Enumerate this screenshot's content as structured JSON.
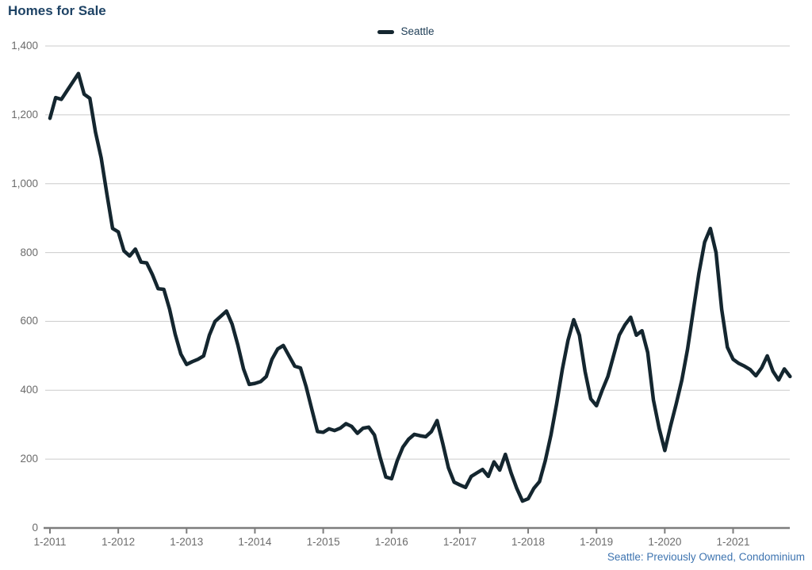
{
  "title": "Homes for Sale",
  "legend": {
    "label": "Seattle"
  },
  "footer": {
    "source_label": "Seattle: Previously Owned, Condominium"
  },
  "colors": {
    "title": "#1e4365",
    "legend_text": "#1d3c55",
    "series_line": "#14262f",
    "gridline": "#cbcbcb",
    "axis": "#7d7d7d",
    "tick_label": "#6b6b6b",
    "source_link": "#3e74b0",
    "background": "#ffffff"
  },
  "chart_data": {
    "type": "line",
    "title": "Homes for Sale",
    "xlabel": "",
    "ylabel": "",
    "grid": "horizontal",
    "legend_position": "top-center",
    "ylim": [
      0,
      1400
    ],
    "y_ticks": [
      {
        "value": 0,
        "label": "0"
      },
      {
        "value": 200,
        "label": "200"
      },
      {
        "value": 400,
        "label": "400"
      },
      {
        "value": 600,
        "label": "600"
      },
      {
        "value": 800,
        "label": "800"
      },
      {
        "value": 1000,
        "label": "1,000"
      },
      {
        "value": 1200,
        "label": "1,200"
      },
      {
        "value": 1400,
        "label": "1,400"
      }
    ],
    "x_axis": {
      "frequency": "monthly",
      "start_label": "1-2011",
      "end_label": "11-2021",
      "months_per_tick": 12,
      "tick_labels": [
        "1-2011",
        "1-2012",
        "1-2013",
        "1-2014",
        "1-2015",
        "1-2016",
        "1-2017",
        "1-2018",
        "1-2019",
        "1-2020",
        "1-2021"
      ]
    },
    "series": [
      {
        "name": "Seattle",
        "color": "#14262f",
        "values": [
          1190,
          1250,
          1245,
          1270,
          1295,
          1320,
          1260,
          1248,
          1150,
          1075,
          970,
          870,
          860,
          805,
          790,
          810,
          772,
          770,
          736,
          695,
          693,
          636,
          563,
          505,
          475,
          483,
          490,
          500,
          560,
          600,
          615,
          630,
          592,
          532,
          462,
          417,
          420,
          425,
          440,
          490,
          520,
          530,
          500,
          470,
          465,
          410,
          345,
          280,
          278,
          288,
          283,
          290,
          303,
          295,
          275,
          290,
          293,
          270,
          205,
          148,
          143,
          195,
          235,
          258,
          272,
          268,
          265,
          280,
          312,
          245,
          175,
          133,
          125,
          118,
          150,
          160,
          170,
          150,
          192,
          168,
          214,
          160,
          115,
          78,
          85,
          115,
          135,
          195,
          270,
          360,
          460,
          545,
          605,
          560,
          455,
          375,
          355,
          400,
          440,
          500,
          560,
          590,
          612,
          560,
          573,
          510,
          372,
          290,
          225,
          295,
          360,
          430,
          520,
          630,
          740,
          830,
          870,
          800,
          635,
          525,
          490,
          478,
          470,
          460,
          442,
          465,
          500,
          455,
          430,
          462,
          440
        ]
      }
    ]
  }
}
